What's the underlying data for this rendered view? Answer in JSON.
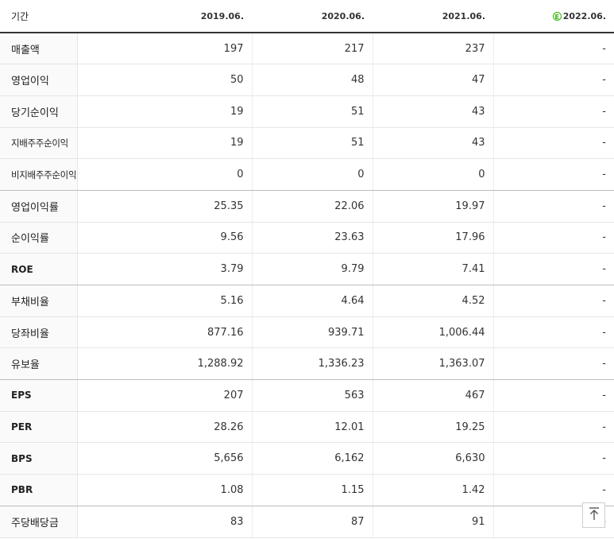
{
  "header": {
    "label": "기간",
    "periods": [
      "2019.06.",
      "2020.06.",
      "2021.06.",
      "2022.06."
    ],
    "estimate_icon": "e-circle-icon",
    "estimate_icon_glyph": "E"
  },
  "rows": [
    {
      "label": "매출액",
      "values": [
        "197",
        "217",
        "237",
        "-"
      ]
    },
    {
      "label": "영업이익",
      "values": [
        "50",
        "48",
        "47",
        "-"
      ]
    },
    {
      "label": "당기순이익",
      "values": [
        "19",
        "51",
        "43",
        "-"
      ]
    },
    {
      "label": "지배주주순이익",
      "values": [
        "19",
        "51",
        "43",
        "-"
      ]
    },
    {
      "label": "비지배주주순이익",
      "values": [
        "0",
        "0",
        "0",
        "-"
      ]
    },
    {
      "label": "영업이익률",
      "values": [
        "25.35",
        "22.06",
        "19.97",
        "-"
      ]
    },
    {
      "label": "순이익률",
      "values": [
        "9.56",
        "23.63",
        "17.96",
        "-"
      ]
    },
    {
      "label": "ROE",
      "values": [
        "3.79",
        "9.79",
        "7.41",
        "-"
      ]
    },
    {
      "label": "부채비율",
      "values": [
        "5.16",
        "4.64",
        "4.52",
        "-"
      ]
    },
    {
      "label": "당좌비율",
      "values": [
        "877.16",
        "939.71",
        "1,006.44",
        "-"
      ]
    },
    {
      "label": "유보율",
      "values": [
        "1,288.92",
        "1,336.23",
        "1,363.07",
        "-"
      ]
    },
    {
      "label": "EPS",
      "values": [
        "207",
        "563",
        "467",
        "-"
      ]
    },
    {
      "label": "PER",
      "values": [
        "28.26",
        "12.01",
        "19.25",
        "-"
      ]
    },
    {
      "label": "BPS",
      "values": [
        "5,656",
        "6,162",
        "6,630",
        "-"
      ]
    },
    {
      "label": "PBR",
      "values": [
        "1.08",
        "1.15",
        "1.42",
        "-"
      ]
    },
    {
      "label": "주당배당금",
      "values": [
        "83",
        "87",
        "91",
        "-"
      ]
    }
  ],
  "scroll_top_icon": "arrow-up-to-top-icon"
}
